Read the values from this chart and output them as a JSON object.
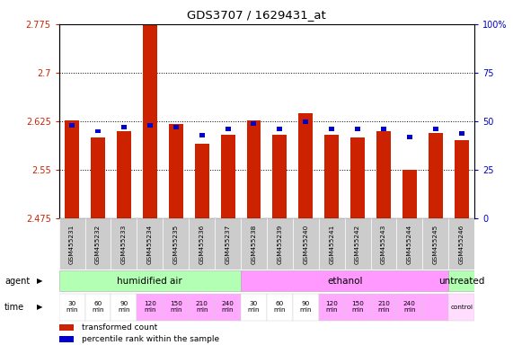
{
  "title": "GDS3707 / 1629431_at",
  "samples": [
    "GSM455231",
    "GSM455232",
    "GSM455233",
    "GSM455234",
    "GSM455235",
    "GSM455236",
    "GSM455237",
    "GSM455238",
    "GSM455239",
    "GSM455240",
    "GSM455241",
    "GSM455242",
    "GSM455243",
    "GSM455244",
    "GSM455245",
    "GSM455246"
  ],
  "red_values": [
    2.627,
    2.6,
    2.61,
    2.773,
    2.621,
    2.59,
    2.604,
    2.627,
    2.605,
    2.638,
    2.605,
    2.6,
    2.61,
    2.55,
    2.607,
    2.596
  ],
  "blue_values_pct": [
    48,
    45,
    47,
    48,
    47,
    43,
    46,
    49,
    46,
    50,
    46,
    46,
    46,
    42,
    46,
    44
  ],
  "ymin": 2.475,
  "ymax": 2.775,
  "yticks": [
    2.475,
    2.55,
    2.625,
    2.7,
    2.775
  ],
  "right_yticks": [
    0,
    25,
    50,
    75,
    100
  ],
  "agent_groups": [
    {
      "label": "humidified air",
      "start": 0,
      "end": 7,
      "color": "#b3ffb3"
    },
    {
      "label": "ethanol",
      "start": 7,
      "end": 15,
      "color": "#ff99ff"
    },
    {
      "label": "untreated",
      "start": 15,
      "end": 16,
      "color": "#b3ffb3"
    }
  ],
  "time_labels": [
    "30\nmin",
    "60\nmin",
    "90\nmin",
    "120\nmin",
    "150\nmin",
    "210\nmin",
    "240\nmin",
    "30\nmin",
    "60\nmin",
    "90\nmin",
    "120\nmin",
    "150\nmin",
    "210\nmin",
    "240\nmin",
    "",
    "control"
  ],
  "time_colors": [
    "#ffffff",
    "#ffffff",
    "#ffffff",
    "#ffaaff",
    "#ffaaff",
    "#ffaaff",
    "#ffaaff",
    "#ffffff",
    "#ffffff",
    "#ffffff",
    "#ffaaff",
    "#ffaaff",
    "#ffaaff",
    "#ffaaff",
    "#ffaaff",
    "#ffddff"
  ],
  "bar_color": "#cc2200",
  "blue_color": "#0000cc",
  "left_label_color": "#cc2200",
  "right_label_color": "#0000cc",
  "legend_red": "transformed count",
  "legend_blue": "percentile rank within the sample",
  "xlabel_bg": "#cccccc"
}
